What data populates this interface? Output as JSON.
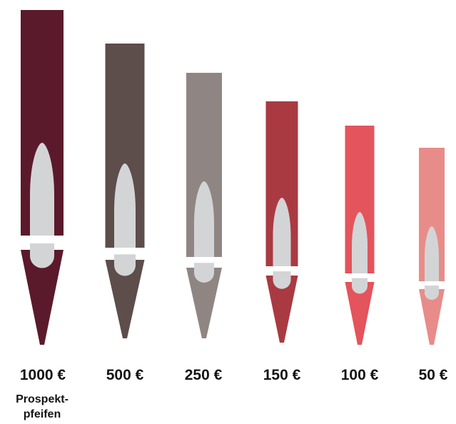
{
  "pipes": [
    {
      "id": "pipe-1000",
      "price": "1000 €",
      "color": "#5b1a2b"
    },
    {
      "id": "pipe-500",
      "price": "500 €",
      "color": "#5d4d4b"
    },
    {
      "id": "pipe-250",
      "price": "250 €",
      "color": "#8f8683"
    },
    {
      "id": "pipe-150",
      "price": "150 €",
      "color": "#a93a42"
    },
    {
      "id": "pipe-100",
      "price": "100 €",
      "color": "#e3545c"
    },
    {
      "id": "pipe-50",
      "price": "50 €",
      "color": "#e88c89"
    }
  ],
  "caption": {
    "line1": "Prospekt-",
    "line2": "pfeifen"
  },
  "colors": {
    "mouth": "#d3d4d6",
    "gap": "#ffffff",
    "text": "#141414"
  }
}
